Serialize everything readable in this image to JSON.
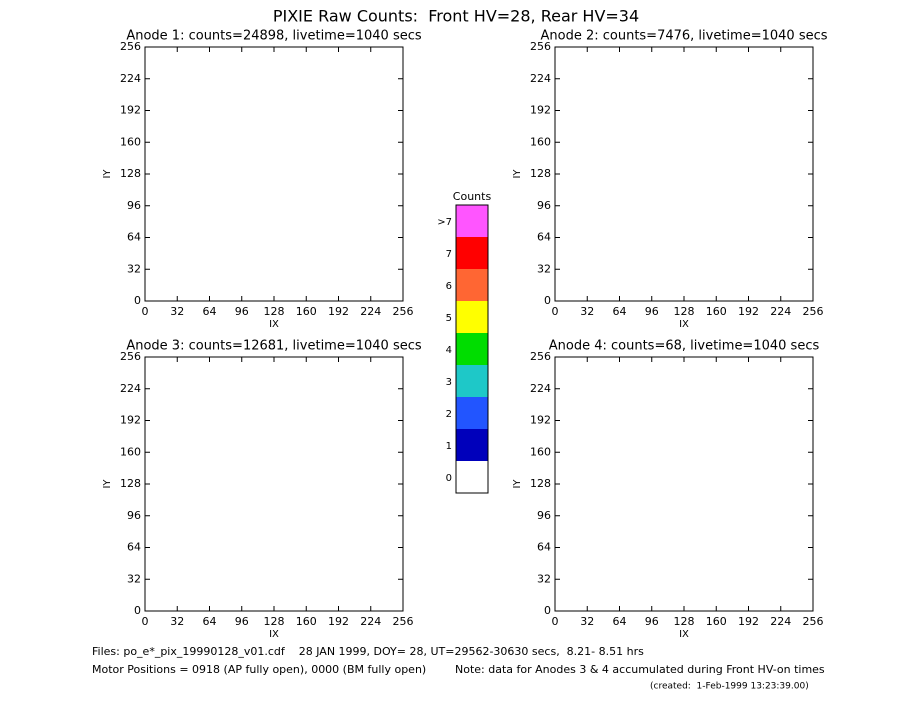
{
  "title": "PIXIE Raw Counts:  Front HV=28, Rear HV=34",
  "chart_data": [
    {
      "type": "heatmap",
      "title": "Anode 1: counts=24898, livetime=1040 secs",
      "x_label": "IX",
      "y_label": "IY",
      "xlim": [
        0,
        256
      ],
      "ylim": [
        0,
        256
      ],
      "xticks": [
        0,
        32,
        64,
        96,
        128,
        160,
        192,
        224,
        256
      ],
      "yticks": [
        0,
        32,
        64,
        96,
        128,
        160,
        192,
        224,
        256
      ]
    },
    {
      "type": "heatmap",
      "title": "Anode 2: counts=7476, livetime=1040 secs",
      "x_label": "IX",
      "y_label": "IY",
      "xlim": [
        0,
        256
      ],
      "ylim": [
        0,
        256
      ],
      "xticks": [
        0,
        32,
        64,
        96,
        128,
        160,
        192,
        224,
        256
      ],
      "yticks": [
        0,
        32,
        64,
        96,
        128,
        160,
        192,
        224,
        256
      ]
    },
    {
      "type": "heatmap",
      "title": "Anode 3: counts=12681, livetime=1040 secs",
      "x_label": "IX",
      "y_label": "IY",
      "xlim": [
        0,
        256
      ],
      "ylim": [
        0,
        256
      ],
      "xticks": [
        0,
        32,
        64,
        96,
        128,
        160,
        192,
        224,
        256
      ],
      "yticks": [
        0,
        32,
        64,
        96,
        128,
        160,
        192,
        224,
        256
      ]
    },
    {
      "type": "heatmap",
      "title": "Anode 4: counts=68, livetime=1040 secs",
      "x_label": "IX",
      "y_label": "IY",
      "xlim": [
        0,
        256
      ],
      "ylim": [
        0,
        256
      ],
      "xticks": [
        0,
        32,
        64,
        96,
        128,
        160,
        192,
        224,
        256
      ],
      "yticks": [
        0,
        32,
        64,
        96,
        128,
        160,
        192,
        224,
        256
      ]
    }
  ],
  "colorbar": {
    "title": "Counts",
    "labels": [
      "0",
      "1",
      "2",
      "3",
      "4",
      "5",
      "6",
      "7",
      ">7"
    ],
    "colors": [
      "#ffffff",
      "#0000bb",
      "#2255ff",
      "#1ec8c8",
      "#00dd00",
      "#ffff00",
      "#ff6633",
      "#ff0000",
      "#ff55ff"
    ]
  },
  "footer": {
    "files": "Files: po_e*_pix_19990128_v01.cdf    28 JAN 1999, DOY= 28, UT=29562-30630 secs,  8.21- 8.51 hrs",
    "motor": "Motor Positions = 0918 (AP fully open), 0000 (BM fully open)",
    "note": "Note: data for Anodes 3 & 4 accumulated during Front HV-on times",
    "created": "(created:  1-Feb-1999 13:23:39.00)"
  }
}
